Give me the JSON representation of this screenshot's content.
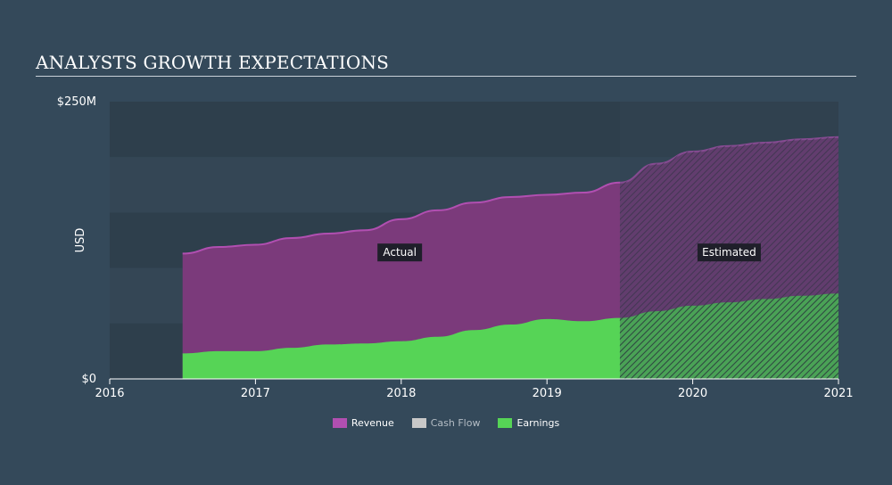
{
  "title": "ANALYSTS GROWTH EXPECTATIONS",
  "colors": {
    "background": "#34495a",
    "revenue": "#7b3a7b",
    "revenue_line": "#b14fb1",
    "earnings": "#56d456",
    "cashflow": "#c8c8c8"
  },
  "chart_data": {
    "type": "area",
    "title": "ANALYSTS GROWTH EXPECTATIONS",
    "xlabel": "",
    "ylabel": "USD",
    "xlim": [
      2016,
      2021.0
    ],
    "ylim": [
      0,
      250
    ],
    "x_ticks": [
      {
        "value": 2016,
        "label": "2016"
      },
      {
        "value": 2017,
        "label": "2017"
      },
      {
        "value": 2018,
        "label": "2018"
      },
      {
        "value": 2019,
        "label": "2019"
      },
      {
        "value": 2020,
        "label": "2020"
      },
      {
        "value": 2021,
        "label": "2021"
      }
    ],
    "y_ticks": [
      {
        "value": 0,
        "label": "$0"
      },
      {
        "value": 250,
        "label": "$250M"
      }
    ],
    "actual_end": 2019.5,
    "annotations": [
      {
        "text": "Actual",
        "x": 2017.99,
        "y": 114
      },
      {
        "text": "Estimated",
        "x": 2020.25,
        "y": 114
      }
    ],
    "series": [
      {
        "name": "Revenue",
        "x": [
          2016.5,
          2016.75,
          2017.0,
          2017.25,
          2017.5,
          2017.75,
          2018.0,
          2018.25,
          2018.5,
          2018.75,
          2019.0,
          2019.25,
          2019.5,
          2019.75,
          2020.0,
          2020.25,
          2020.5,
          2020.75,
          2021.0
        ],
        "values": [
          113,
          119,
          121,
          127,
          131,
          134,
          144,
          152,
          159,
          164,
          166,
          168,
          177,
          194,
          205,
          210,
          213,
          216,
          218
        ]
      },
      {
        "name": "Cash Flow",
        "x": [],
        "values": []
      },
      {
        "name": "Earnings",
        "x": [
          2016.5,
          2016.75,
          2017.0,
          2017.25,
          2017.5,
          2017.75,
          2018.0,
          2018.25,
          2018.5,
          2018.75,
          2019.0,
          2019.25,
          2019.5,
          2019.75,
          2020.0,
          2020.25,
          2020.5,
          2020.75,
          2021.0
        ],
        "values": [
          23,
          25,
          25,
          28,
          31,
          32,
          34,
          38,
          44,
          49,
          54,
          52,
          55,
          61,
          66,
          69,
          72,
          75,
          77
        ]
      }
    ],
    "legend": [
      {
        "label": "Revenue",
        "color": "#b14fb1",
        "active": true
      },
      {
        "label": "Cash Flow",
        "color": "#c8c8c8",
        "active": false
      },
      {
        "label": "Earnings",
        "color": "#56d456",
        "active": true
      }
    ]
  }
}
